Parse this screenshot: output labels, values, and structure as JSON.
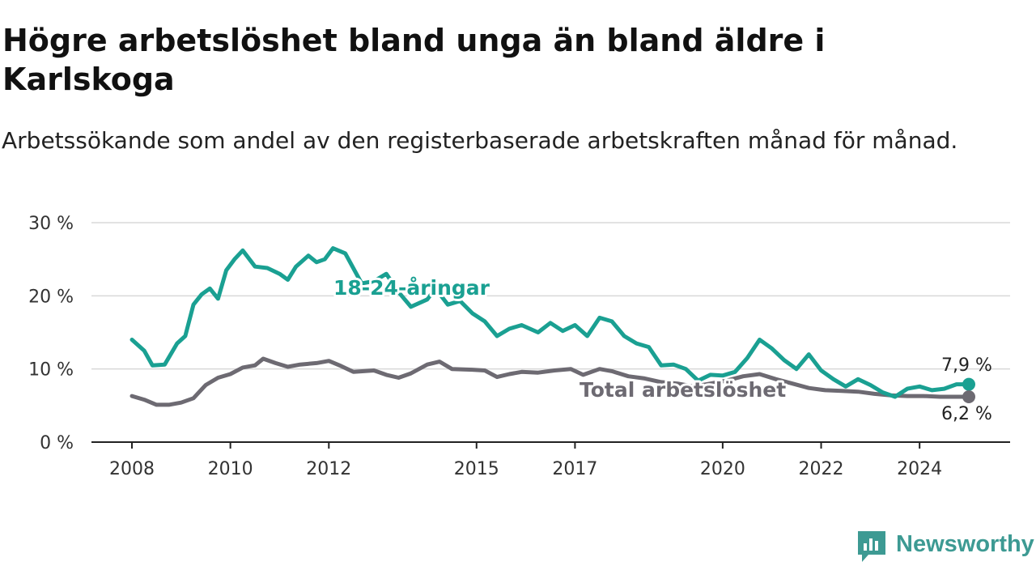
{
  "title": "Högre arbetslöshet bland unga än bland äldre i Karlskoga",
  "subtitle": "Arbetssökande som andel av den registerbaserade arbetskraften månad för månad.",
  "logo_text": "Newsworthy",
  "colors": {
    "youth": "#1aa092",
    "total": "#6d6a72",
    "grid": "#d9d9d9",
    "axis": "#222222",
    "brand": "#3d9a93"
  },
  "chart_data": {
    "type": "line",
    "x_axis": {
      "ticks": [
        "2008",
        "2010",
        "2012",
        "2015",
        "2017",
        "2020",
        "2022",
        "2024"
      ]
    },
    "y_axis": {
      "ticks": [
        "0 %",
        "10 %",
        "20 %",
        "30 %"
      ],
      "ylim": [
        0,
        30
      ],
      "grid": true
    },
    "series": [
      {
        "name": "18-24-åringar",
        "end_label": "7,9 %",
        "points": [
          [
            "2008-01",
            14.0
          ],
          [
            "2008-04",
            12.5
          ],
          [
            "2008-06",
            10.5
          ],
          [
            "2008-09",
            10.6
          ],
          [
            "2008-12",
            13.5
          ],
          [
            "2009-02",
            14.5
          ],
          [
            "2009-04",
            18.8
          ],
          [
            "2009-06",
            20.2
          ],
          [
            "2009-08",
            21.0
          ],
          [
            "2009-10",
            19.6
          ],
          [
            "2009-12",
            23.5
          ],
          [
            "2010-02",
            25.0
          ],
          [
            "2010-04",
            26.2
          ],
          [
            "2010-07",
            24.0
          ],
          [
            "2010-10",
            23.8
          ],
          [
            "2011-01",
            23.0
          ],
          [
            "2011-03",
            22.2
          ],
          [
            "2011-05",
            24.0
          ],
          [
            "2011-08",
            25.5
          ],
          [
            "2011-10",
            24.6
          ],
          [
            "2011-12",
            25.0
          ],
          [
            "2012-02",
            26.5
          ],
          [
            "2012-05",
            25.8
          ],
          [
            "2012-09",
            21.7
          ],
          [
            "2012-12",
            22.0
          ],
          [
            "2013-03",
            23.0
          ],
          [
            "2013-06",
            20.5
          ],
          [
            "2013-09",
            18.5
          ],
          [
            "2014-01",
            19.5
          ],
          [
            "2014-03",
            21.0
          ],
          [
            "2014-06",
            18.8
          ],
          [
            "2014-09",
            19.3
          ],
          [
            "2014-12",
            17.6
          ],
          [
            "2015-03",
            16.5
          ],
          [
            "2015-06",
            14.5
          ],
          [
            "2015-09",
            15.5
          ],
          [
            "2015-12",
            16.0
          ],
          [
            "2016-04",
            15.0
          ],
          [
            "2016-07",
            16.3
          ],
          [
            "2016-10",
            15.2
          ],
          [
            "2017-01",
            16.0
          ],
          [
            "2017-04",
            14.5
          ],
          [
            "2017-07",
            17.0
          ],
          [
            "2017-10",
            16.5
          ],
          [
            "2018-01",
            14.5
          ],
          [
            "2018-04",
            13.5
          ],
          [
            "2018-07",
            13.0
          ],
          [
            "2018-10",
            10.5
          ],
          [
            "2019-01",
            10.6
          ],
          [
            "2019-04",
            10.0
          ],
          [
            "2019-07",
            8.4
          ],
          [
            "2019-10",
            9.2
          ],
          [
            "2020-01",
            9.1
          ],
          [
            "2020-04",
            9.6
          ],
          [
            "2020-07",
            11.5
          ],
          [
            "2020-10",
            14.0
          ],
          [
            "2021-01",
            12.8
          ],
          [
            "2021-04",
            11.2
          ],
          [
            "2021-07",
            10.0
          ],
          [
            "2021-10",
            12.0
          ],
          [
            "2022-01",
            9.8
          ],
          [
            "2022-04",
            8.6
          ],
          [
            "2022-07",
            7.6
          ],
          [
            "2022-10",
            8.6
          ],
          [
            "2023-01",
            7.8
          ],
          [
            "2023-04",
            6.8
          ],
          [
            "2023-07",
            6.2
          ],
          [
            "2023-10",
            7.3
          ],
          [
            "2024-01",
            7.6
          ],
          [
            "2024-04",
            7.1
          ],
          [
            "2024-07",
            7.3
          ],
          [
            "2024-10",
            7.9
          ],
          [
            "2025-01",
            7.9
          ]
        ]
      },
      {
        "name": "Total arbetslöshet",
        "end_label": "6,2 %",
        "points": [
          [
            "2008-01",
            6.3
          ],
          [
            "2008-04",
            5.8
          ],
          [
            "2008-07",
            5.1
          ],
          [
            "2008-10",
            5.1
          ],
          [
            "2009-01",
            5.4
          ],
          [
            "2009-04",
            6.0
          ],
          [
            "2009-07",
            7.8
          ],
          [
            "2009-10",
            8.8
          ],
          [
            "2010-01",
            9.3
          ],
          [
            "2010-04",
            10.2
          ],
          [
            "2010-07",
            10.5
          ],
          [
            "2010-09",
            11.4
          ],
          [
            "2010-12",
            10.8
          ],
          [
            "2011-03",
            10.3
          ],
          [
            "2011-06",
            10.6
          ],
          [
            "2011-10",
            10.8
          ],
          [
            "2012-01",
            11.1
          ],
          [
            "2012-04",
            10.4
          ],
          [
            "2012-07",
            9.6
          ],
          [
            "2012-12",
            9.8
          ],
          [
            "2013-03",
            9.2
          ],
          [
            "2013-06",
            8.8
          ],
          [
            "2013-09",
            9.4
          ],
          [
            "2014-01",
            10.6
          ],
          [
            "2014-04",
            11.0
          ],
          [
            "2014-07",
            10.0
          ],
          [
            "2014-12",
            9.9
          ],
          [
            "2015-03",
            9.8
          ],
          [
            "2015-06",
            8.9
          ],
          [
            "2015-09",
            9.3
          ],
          [
            "2015-12",
            9.6
          ],
          [
            "2016-04",
            9.5
          ],
          [
            "2016-08",
            9.8
          ],
          [
            "2016-12",
            10.0
          ],
          [
            "2017-03",
            9.2
          ],
          [
            "2017-07",
            10.0
          ],
          [
            "2017-10",
            9.7
          ],
          [
            "2018-02",
            9.0
          ],
          [
            "2018-06",
            8.7
          ],
          [
            "2018-10",
            8.2
          ],
          [
            "2019-02",
            8.0
          ],
          [
            "2019-06",
            7.6
          ],
          [
            "2019-10",
            8.0
          ],
          [
            "2020-02",
            8.4
          ],
          [
            "2020-06",
            9.0
          ],
          [
            "2020-10",
            9.3
          ],
          [
            "2021-02",
            8.6
          ],
          [
            "2021-06",
            8.0
          ],
          [
            "2021-10",
            7.4
          ],
          [
            "2022-02",
            7.1
          ],
          [
            "2022-06",
            7.0
          ],
          [
            "2022-10",
            6.9
          ],
          [
            "2023-02",
            6.6
          ],
          [
            "2023-06",
            6.4
          ],
          [
            "2023-10",
            6.3
          ],
          [
            "2024-02",
            6.3
          ],
          [
            "2024-06",
            6.2
          ],
          [
            "2024-10",
            6.2
          ],
          [
            "2025-01",
            6.2
          ]
        ]
      }
    ]
  }
}
